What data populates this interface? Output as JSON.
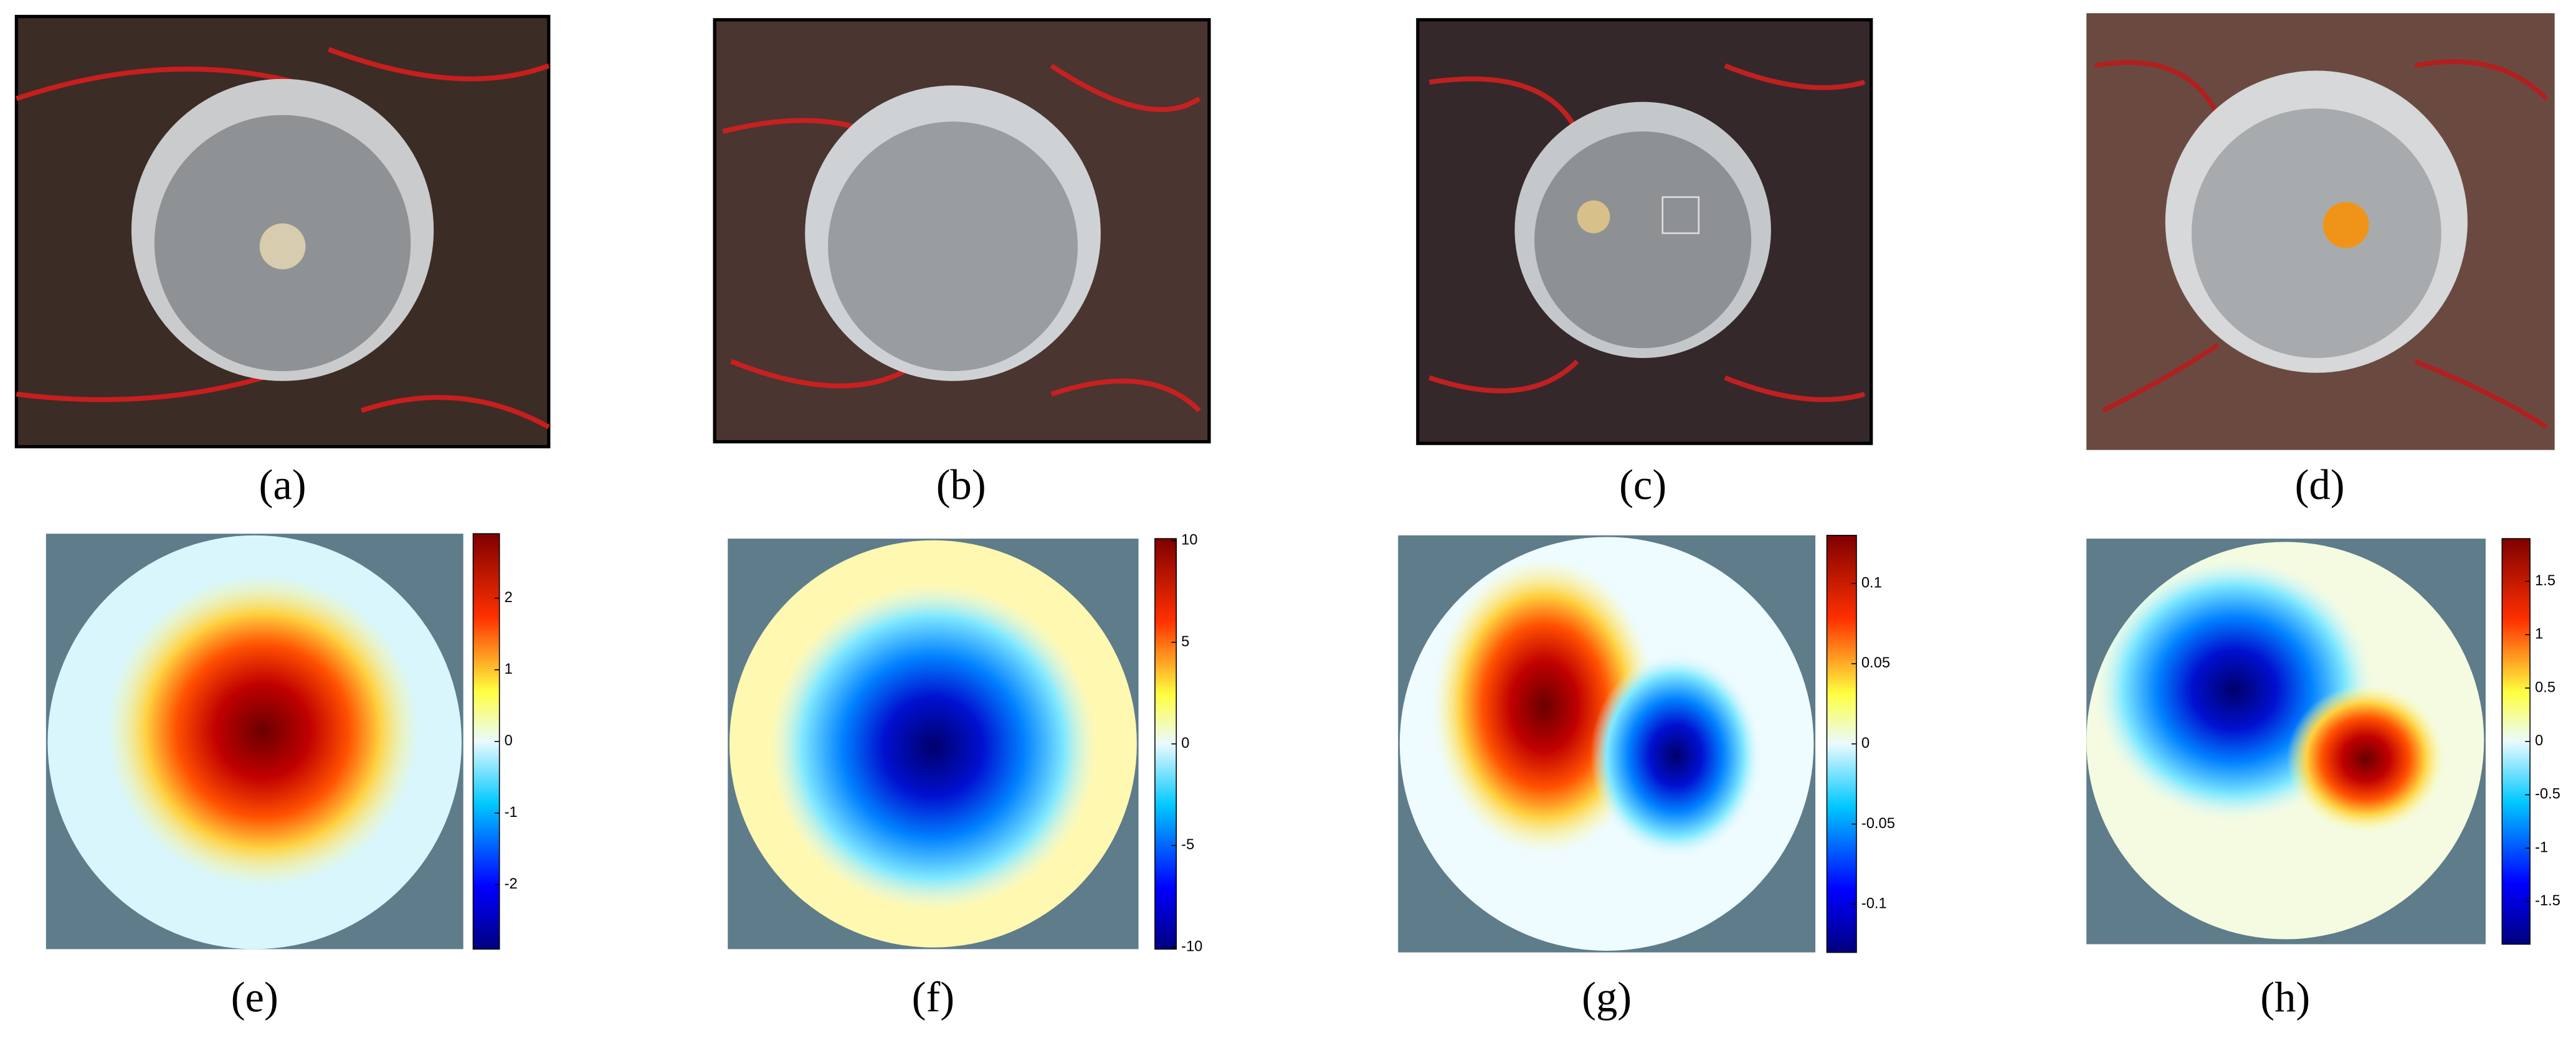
{
  "panels": [
    {
      "label": "(a)"
    },
    {
      "label": "(b)"
    },
    {
      "label": "(c)"
    },
    {
      "label": "(d)"
    },
    {
      "label": "(e)"
    },
    {
      "label": "(f)"
    },
    {
      "label": "(g)"
    },
    {
      "label": "(h)"
    }
  ],
  "colorbars": [
    {
      "lim": [
        -2.9,
        2.9
      ],
      "ticks": [
        2,
        1,
        0,
        -1,
        -2
      ]
    },
    {
      "lim": [
        -10.1,
        10.1
      ],
      "ticks": [
        10,
        5,
        0,
        -5,
        -10
      ]
    },
    {
      "lim": [
        -0.13,
        0.13
      ],
      "ticks": [
        0.1,
        0.05,
        0,
        -0.05,
        -0.1
      ]
    },
    {
      "lim": [
        -1.9,
        1.9
      ],
      "ticks": [
        1.5,
        1,
        0.5,
        0,
        -0.5,
        -1,
        -1.5
      ]
    }
  ]
}
